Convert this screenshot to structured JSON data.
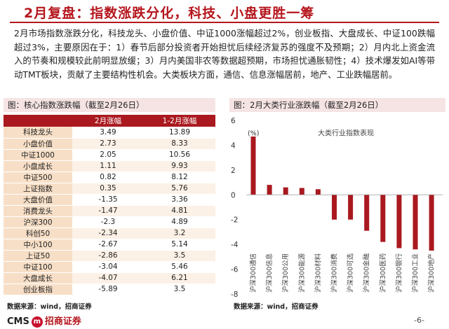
{
  "page_title": "2月复盘：指数涨跌分化，科技、小盘更胜一筹",
  "summary": "2月市场指数涨跌分化，科技龙头、小盘价值、中证1000涨幅超过2%，创业板指、大盘成长、中证100跌幅超过3%，主要原因在于：1）春节后部分投资者开始担忧后续经济复苏的强度不及预期；2）月内北上资金流入的节奏和规模较此前明显放缓；3）月内美国非农等数据超预期，市场担忧通胀韧性；4）技术爆发如AI等带动TMT板块，贡献了主要结构性机会。大类板块方面，通信、信息涨幅居前，地产、工业跌幅居前。",
  "left_panel": {
    "title": "图：核心指数涨跌幅（截至2月26日）",
    "headers": [
      "",
      "2月涨幅",
      "1-2月涨幅"
    ],
    "rows": [
      {
        "name": "科技龙头",
        "feb": "3.49",
        "ytd": "13.89"
      },
      {
        "name": "小盘价值",
        "feb": "2.73",
        "ytd": "8.33"
      },
      {
        "name": "中证1000",
        "feb": "2.05",
        "ytd": "10.56"
      },
      {
        "name": "小盘成长",
        "feb": "1.11",
        "ytd": "9.93"
      },
      {
        "name": "中证500",
        "feb": "0.82",
        "ytd": "8.12"
      },
      {
        "name": "上证指数",
        "feb": "0.35",
        "ytd": "5.76"
      },
      {
        "name": "大盘价值",
        "feb": "-1.35",
        "ytd": "3.36"
      },
      {
        "name": "消费龙头",
        "feb": "-1.47",
        "ytd": "4.81"
      },
      {
        "name": "沪深300",
        "feb": "-2.3",
        "ytd": "4.89"
      },
      {
        "name": "科创50",
        "feb": "-2.34",
        "ytd": "3.2"
      },
      {
        "name": "中小100",
        "feb": "-2.67",
        "ytd": "5.14"
      },
      {
        "name": "上证50",
        "feb": "-2.86",
        "ytd": "3.5"
      },
      {
        "name": "中证100",
        "feb": "-3.04",
        "ytd": "5.46"
      },
      {
        "name": "大盘成长",
        "feb": "-4.07",
        "ytd": "6.21"
      },
      {
        "name": "创业板指",
        "feb": "-5.89",
        "ytd": "3.5"
      }
    ],
    "source": "数据来源：wind，招商证券"
  },
  "right_panel": {
    "title": "图：2月大类行业涨跌幅（截至2月26日）",
    "source": "数据来源：wind，招商证券"
  },
  "chart_data": {
    "type": "bar",
    "title": "大类行业指数表现",
    "ylabel": "(%)",
    "ylim": [
      -8,
      6
    ],
    "yticks": [
      6,
      4,
      2,
      0,
      -2,
      -4,
      -6,
      -8
    ],
    "grid": false,
    "bar_color": "#a9191f",
    "categories": [
      "沪深300通信",
      "沪深300信息",
      "沪深300公用",
      "沪深300能源",
      "沪深300材料",
      "沪深300消费",
      "沪深300可选",
      "沪深300金融",
      "沪深300医药",
      "沪深300银行",
      "沪深300工业",
      "沪深300地产"
    ],
    "values": [
      4.7,
      0.8,
      0.6,
      0.55,
      0.45,
      -2.0,
      -2.0,
      -2.9,
      -3.8,
      -4.3,
      -4.4,
      -4.5
    ]
  },
  "footer": {
    "logo_latin": "CMS",
    "logo_badge": "m",
    "logo_cn": "招商证券",
    "page_number": "-6-"
  }
}
